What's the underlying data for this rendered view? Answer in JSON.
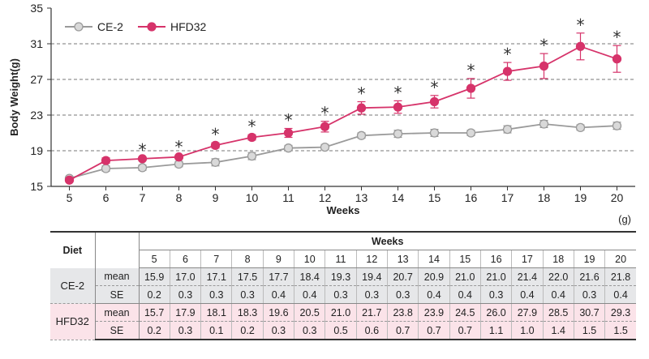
{
  "chart_data": {
    "type": "line",
    "xlabel": "Weeks",
    "ylabel": "Body Weight(g)",
    "x": [
      5,
      6,
      7,
      8,
      9,
      10,
      11,
      12,
      13,
      14,
      15,
      16,
      17,
      18,
      19,
      20
    ],
    "ylim": [
      15,
      35
    ],
    "yticks": [
      15,
      19,
      23,
      27,
      31,
      35
    ],
    "grid": "dashed horizontal at 19, 23, 27, 31",
    "legend_position": "top-left",
    "significance_marker": "*",
    "significant_weeks": [
      7,
      8,
      9,
      10,
      11,
      12,
      13,
      14,
      15,
      16,
      17,
      18,
      19,
      20
    ],
    "series": [
      {
        "name": "CE-2",
        "color": "#9a9a9a",
        "marker_fill": "#d9d9d9",
        "values": [
          15.9,
          17.0,
          17.1,
          17.5,
          17.7,
          18.4,
          19.3,
          19.4,
          20.7,
          20.9,
          21.0,
          21.0,
          21.4,
          22.0,
          21.6,
          21.8
        ],
        "se": [
          0.2,
          0.3,
          0.3,
          0.3,
          0.4,
          0.4,
          0.3,
          0.3,
          0.3,
          0.4,
          0.4,
          0.3,
          0.4,
          0.4,
          0.3,
          0.4
        ]
      },
      {
        "name": "HFD32",
        "color": "#d6336a",
        "marker_fill": "#d6336a",
        "values": [
          15.7,
          17.9,
          18.1,
          18.3,
          19.6,
          20.5,
          21.0,
          21.7,
          23.8,
          23.9,
          24.5,
          26.0,
          27.9,
          28.5,
          30.7,
          29.3
        ],
        "se": [
          0.2,
          0.3,
          0.1,
          0.2,
          0.3,
          0.3,
          0.5,
          0.6,
          0.7,
          0.7,
          0.7,
          1.1,
          1.0,
          1.4,
          1.5,
          1.5
        ]
      }
    ]
  },
  "table": {
    "unit": "(g)",
    "diet_header": "Diet",
    "weeks_header": "Weeks",
    "mean_label": "mean",
    "se_label": "SE"
  }
}
